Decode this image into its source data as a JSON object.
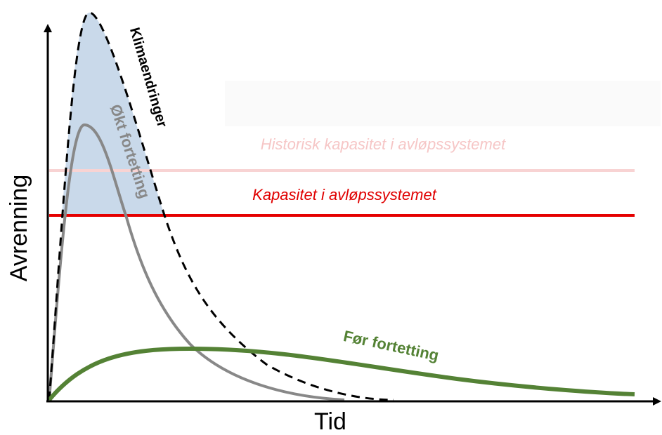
{
  "x_axis_label": "Tid",
  "y_axis_label": "Avrenning",
  "lines": {
    "historical_capacity": "Historisk kapasitet i avløpssystemet",
    "capacity": "Kapasitet i avløpssystemet"
  },
  "curves": {
    "climate": "Klimaendringer",
    "densification": "Økt fortetting",
    "before": "Før fortetting"
  }
}
